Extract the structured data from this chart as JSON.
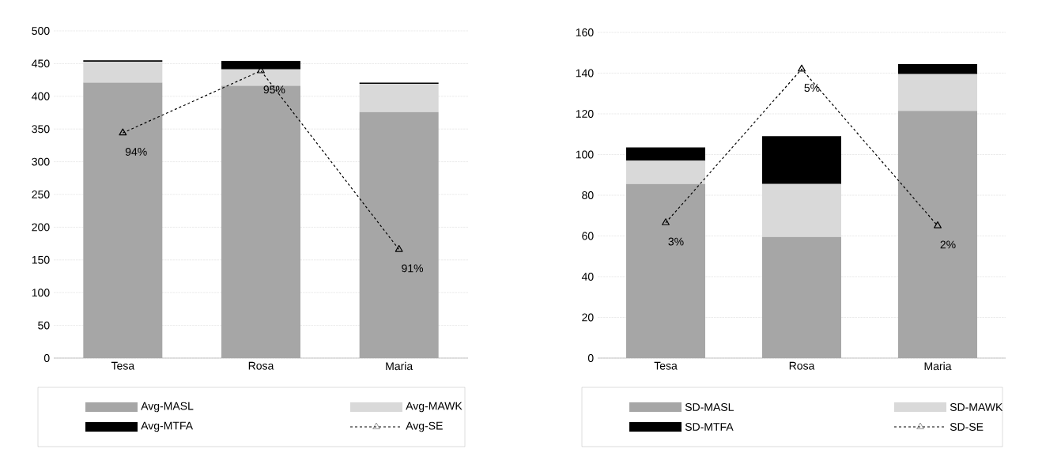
{
  "chart_data": [
    {
      "type": "bar",
      "stacked": true,
      "categories": [
        "Tesa",
        "Rosa",
        "Maria"
      ],
      "series": [
        {
          "name": "Avg-MASL",
          "color": "#a6a6a6",
          "values": [
            421,
            416,
            376
          ]
        },
        {
          "name": "Avg-MAWK",
          "color": "#d9d9d9",
          "values": [
            32,
            25,
            43
          ]
        },
        {
          "name": "Avg-MTFA",
          "color": "#000000",
          "values": [
            2,
            13,
            2
          ]
        },
        {
          "name": "Avg-SE",
          "type": "line",
          "color": "#000000",
          "marker": "triangle",
          "line_style": "dashed",
          "values": [
            344,
            439,
            166
          ]
        }
      ],
      "ylim": [
        0,
        500
      ],
      "yticks": [
        0,
        50,
        100,
        150,
        200,
        250,
        300,
        350,
        400,
        450,
        500
      ],
      "grid": "y",
      "legend": "bottom",
      "annotations": [
        {
          "text": "94%",
          "x": "Tesa",
          "y": 344
        },
        {
          "text": "95%",
          "x": "Rosa",
          "y": 439
        },
        {
          "text": "91%",
          "x": "Maria",
          "y": 166
        }
      ]
    },
    {
      "type": "bar",
      "stacked": true,
      "categories": [
        "Tesa",
        "Rosa",
        "Maria"
      ],
      "series": [
        {
          "name": "SD-MASL",
          "color": "#a6a6a6",
          "values": [
            85.5,
            59.5,
            121.5
          ]
        },
        {
          "name": "SD-MAWK",
          "color": "#d9d9d9",
          "values": [
            11.5,
            26,
            18
          ]
        },
        {
          "name": "SD-MTFA",
          "color": "#000000",
          "values": [
            6.5,
            23.5,
            5
          ]
        },
        {
          "name": "SD-SE",
          "type": "line",
          "color": "#000000",
          "marker": "triangle",
          "line_style": "dashed",
          "values": [
            66.5,
            142,
            65
          ]
        }
      ],
      "ylim": [
        0,
        160
      ],
      "yticks": [
        0,
        20,
        40,
        60,
        80,
        100,
        120,
        140,
        160
      ],
      "grid": "y",
      "legend": "bottom",
      "annotations": [
        {
          "text": "3%",
          "x": "Tesa",
          "y": 66.5
        },
        {
          "text": "5%",
          "x": "Rosa",
          "y": 142
        },
        {
          "text": "2%",
          "x": "Maria",
          "y": 65
        }
      ]
    }
  ]
}
